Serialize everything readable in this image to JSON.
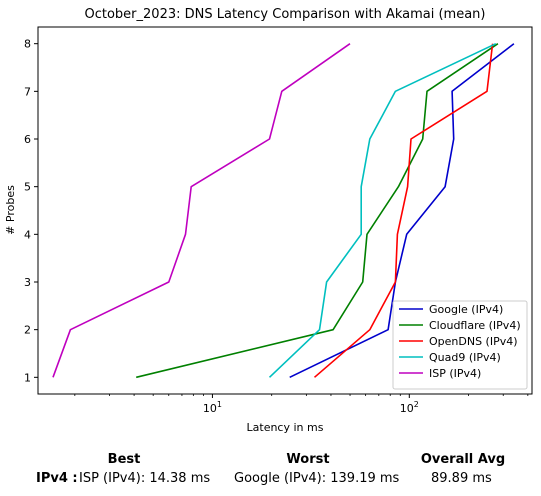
{
  "chart_data": {
    "type": "line",
    "title": "October_2023: DNS Latency Comparison with Akamai (mean)",
    "xlabel": "Latency in ms",
    "ylabel": "# Probes",
    "x_scale": "log",
    "xlim": [
      1.3,
      420
    ],
    "ylim": [
      0.65,
      8.35
    ],
    "xticks": [
      {
        "value": 10,
        "label": "10^1"
      },
      {
        "value": 100,
        "label": "10^2"
      }
    ],
    "yticks": [
      1,
      2,
      3,
      4,
      5,
      6,
      7,
      8
    ],
    "grid": false,
    "legend_position": "lower right",
    "series": [
      {
        "name": "Google (IPv4)",
        "color": "#0000cc",
        "points": [
          [
            24.7,
            1
          ],
          [
            78,
            2
          ],
          [
            85,
            3
          ],
          [
            97,
            4
          ],
          [
            152,
            5
          ],
          [
            168,
            6
          ],
          [
            165,
            7
          ],
          [
            340,
            8
          ]
        ]
      },
      {
        "name": "Cloudflare (IPv4)",
        "color": "#008000",
        "points": [
          [
            4.1,
            1
          ],
          [
            41,
            2
          ],
          [
            58,
            3
          ],
          [
            61,
            4
          ],
          [
            88,
            5
          ],
          [
            117,
            6
          ],
          [
            123,
            7
          ],
          [
            282,
            8
          ]
        ]
      },
      {
        "name": "OpenDNS (IPv4)",
        "color": "#ff0000",
        "points": [
          [
            33,
            1
          ],
          [
            63,
            2
          ],
          [
            85,
            3
          ],
          [
            87,
            4
          ],
          [
            98,
            5
          ],
          [
            102,
            6
          ],
          [
            248,
            7
          ],
          [
            265,
            8
          ]
        ]
      },
      {
        "name": "Quad9 (IPv4)",
        "color": "#00bfbf",
        "points": [
          [
            19.5,
            1
          ],
          [
            35,
            2
          ],
          [
            38,
            3
          ],
          [
            57,
            4
          ],
          [
            57,
            5
          ],
          [
            63,
            6
          ],
          [
            85,
            7
          ],
          [
            275,
            8
          ]
        ]
      },
      {
        "name": "ISP (IPv4)",
        "color": "#bf00bf",
        "points": [
          [
            1.55,
            1
          ],
          [
            1.9,
            2
          ],
          [
            6,
            3
          ],
          [
            7.3,
            4
          ],
          [
            7.8,
            5
          ],
          [
            19.5,
            6
          ],
          [
            22.5,
            7
          ],
          [
            50,
            8
          ]
        ]
      }
    ]
  },
  "summary": {
    "headers": {
      "best": "Best",
      "worst": "Worst",
      "avg": "Overall Avg"
    },
    "row_label": "IPv4 :",
    "best": "ISP (IPv4): 14.38 ms",
    "worst": "Google (IPv4): 139.19 ms",
    "avg": "89.89 ms"
  }
}
